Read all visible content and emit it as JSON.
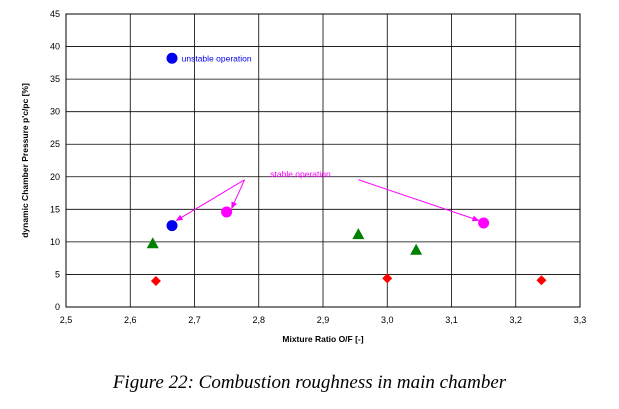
{
  "caption": "Figure  22:  Combustion roughness in main chamber",
  "chart_data": {
    "type": "scatter",
    "xlabel": "Mixture Ratio O/F  [-]",
    "ylabel": "dynamic Chamber Pressure  p'c/pc [%]",
    "xlim": [
      2.5,
      3.3
    ],
    "ylim": [
      0,
      45
    ],
    "x_ticks": [
      "2,5",
      "2,6",
      "2,7",
      "2,8",
      "2,9",
      "3,0",
      "3,1",
      "3,2",
      "3,3"
    ],
    "y_ticks": [
      "0",
      "5",
      "10",
      "15",
      "20",
      "25",
      "30",
      "35",
      "40",
      "45"
    ],
    "grid": true,
    "series": [
      {
        "marker": "circle",
        "color": "#0000ee",
        "points": [
          [
            2.665,
            38.2
          ],
          [
            2.665,
            12.5
          ]
        ]
      },
      {
        "marker": "circle",
        "color": "#ff00ff",
        "points": [
          [
            2.75,
            14.6
          ],
          [
            3.15,
            12.9
          ]
        ]
      },
      {
        "marker": "triangle",
        "color": "#008000",
        "points": [
          [
            2.635,
            9.8
          ],
          [
            2.955,
            11.2
          ],
          [
            3.045,
            8.8
          ]
        ]
      },
      {
        "marker": "diamond",
        "color": "#ff0000",
        "points": [
          [
            2.64,
            4.0
          ],
          [
            3.0,
            4.4
          ],
          [
            3.24,
            4.1
          ]
        ]
      }
    ],
    "annotations": [
      {
        "text": "unstable operation",
        "color": "#0000ee",
        "x": 2.68,
        "y": 38.2
      },
      {
        "text": "stable operation",
        "color": "#ff00ff",
        "x": 2.865,
        "y": 20.0,
        "arrows_to": [
          [
            2.672,
            13.3
          ],
          [
            2.758,
            15.2
          ],
          [
            3.142,
            13.3
          ]
        ]
      }
    ]
  }
}
